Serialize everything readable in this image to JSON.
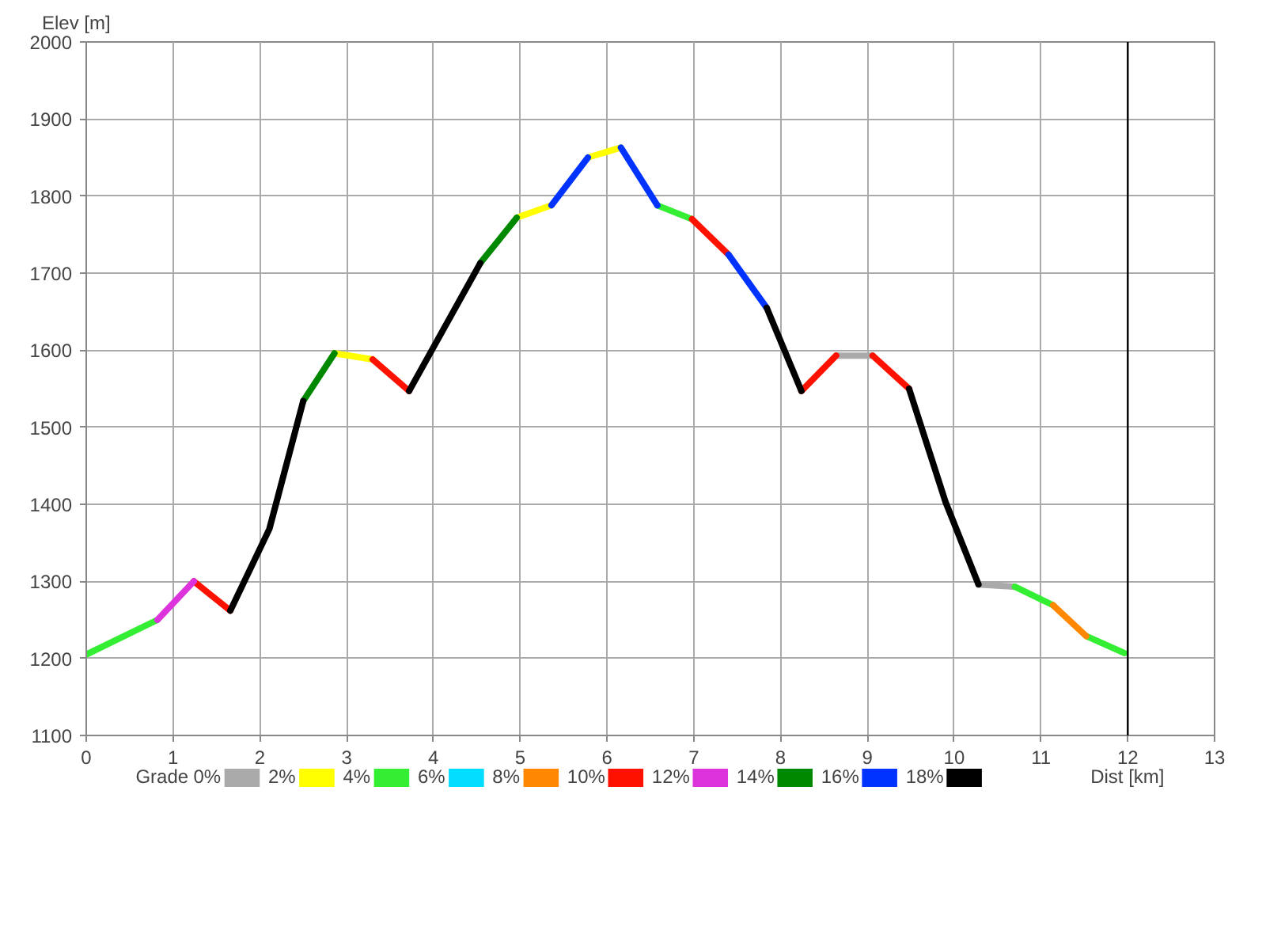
{
  "chart_data": {
    "type": "line",
    "ylabel": "Elev [m]",
    "xlabel": "Dist [km]",
    "legend_title": "Grade",
    "series": [
      {
        "name": "0%",
        "color": "#aaaaaa",
        "x": [
          8.64,
          9.06,
          null,
          10.28,
          10.7
        ],
        "values": [
          1593,
          1593,
          null,
          1296,
          1293
        ]
      },
      {
        "name": "2%",
        "color": "#ffff00",
        "x": [
          2.86,
          3.3,
          null,
          4.96,
          5.36,
          null,
          5.78,
          6.16
        ],
        "values": [
          1596,
          1588,
          null,
          1772,
          1788,
          null,
          1850,
          1863
        ]
      },
      {
        "name": "4%",
        "color": "#33ee33",
        "x": [
          0,
          0.82,
          null,
          6.58,
          6.98,
          null,
          10.7,
          11.14,
          null,
          11.52,
          11.96
        ],
        "values": [
          1205,
          1250,
          null,
          1788,
          1770,
          null,
          1293,
          1269,
          null,
          1229,
          1207
        ]
      },
      {
        "name": "6%",
        "color": "#00ddff"
      },
      {
        "name": "8%",
        "color": "#ff8800",
        "x": [
          11.14,
          11.52
        ],
        "values": [
          1269,
          1229
        ]
      },
      {
        "name": "10%",
        "color": "#ff1100",
        "x": [
          1.24,
          1.66,
          null,
          3.3,
          3.72,
          null,
          6.98,
          7.4,
          null,
          8.24,
          8.64,
          null,
          9.06,
          9.48
        ],
        "values": [
          1300,
          1262,
          null,
          1588,
          1547,
          null,
          1770,
          1724,
          null,
          1547,
          1593,
          null,
          1593,
          1550
        ]
      },
      {
        "name": "12%",
        "color": "#dd33dd",
        "x": [
          0.82,
          1.24
        ],
        "values": [
          1250,
          1300
        ]
      },
      {
        "name": "14%",
        "color": "#008800",
        "x": [
          2.5,
          2.86,
          null,
          4.54,
          4.96
        ],
        "values": [
          1534,
          1596,
          null,
          1713,
          1772
        ]
      },
      {
        "name": "16%",
        "color": "#0033ff",
        "x": [
          5.36,
          5.78,
          null,
          6.16,
          6.58,
          null,
          7.4,
          7.84
        ],
        "values": [
          1788,
          1850,
          null,
          1863,
          1788,
          null,
          1724,
          1655
        ]
      },
      {
        "name": "18%",
        "color": "#000000",
        "x": [
          1.66,
          2.11,
          2.5,
          null,
          3.72,
          4.54,
          null,
          7.84,
          8.24,
          null,
          9.48,
          9.9,
          10.28
        ],
        "values": [
          1262,
          1368,
          1534,
          null,
          1547,
          1713,
          null,
          1655,
          1547,
          null,
          1550,
          1403,
          1296
        ]
      }
    ],
    "xlim": [
      0,
      13
    ],
    "xticks": [
      0,
      1,
      2,
      3,
      4,
      5,
      6,
      7,
      8,
      9,
      10,
      11,
      12,
      13
    ],
    "ylim": [
      1100,
      2000
    ],
    "yticks": [
      1100,
      1200,
      1300,
      1400,
      1500,
      1600,
      1700,
      1800,
      1900,
      2000
    ],
    "grid": true,
    "legend": "bottom",
    "ref_lines": [
      {
        "axis": "x",
        "value": 12,
        "color": "#000000"
      }
    ]
  }
}
